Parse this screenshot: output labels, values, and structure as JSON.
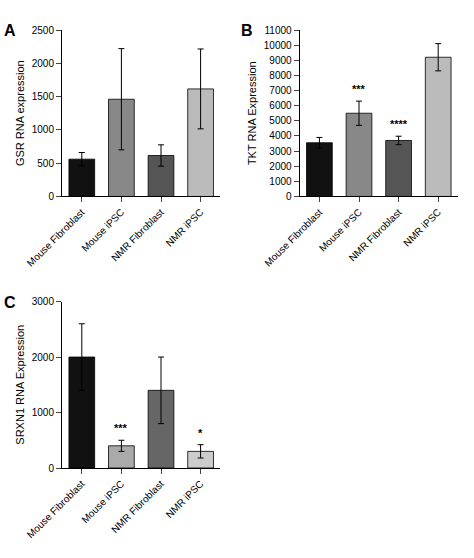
{
  "chart_data": [
    {
      "type": "bar",
      "title": "A",
      "ylabel": "GSR RNA expression",
      "categories": [
        "Mouse Fibroblast",
        "Mouse iPSC",
        "NMR Fibroblast",
        "NMR iPSC"
      ],
      "values": [
        560,
        1460,
        615,
        1615
      ],
      "errors": [
        100,
        760,
        160,
        600
      ],
      "colors": [
        "#111111",
        "#888888",
        "#555555",
        "#bbbbbb"
      ],
      "ylim": [
        0,
        2500
      ],
      "yticks": [
        0,
        500,
        1000,
        1500,
        2000,
        2500
      ],
      "annotations": [],
      "grid": false
    },
    {
      "type": "bar",
      "title": "B",
      "ylabel": "TKT RNA Expression",
      "categories": [
        "Mouse Fibroblast",
        "Mouse iPSC",
        "NMR Fibroblast",
        "NMR iPSC"
      ],
      "values": [
        3550,
        5500,
        3700,
        9200
      ],
      "errors": [
        350,
        800,
        280,
        900
      ],
      "colors": [
        "#111111",
        "#888888",
        "#555555",
        "#bbbbbb"
      ],
      "ylim": [
        0,
        11000
      ],
      "yticks": [
        0,
        1000,
        2000,
        3000,
        4000,
        5000,
        6000,
        7000,
        8000,
        9000,
        10000,
        11000
      ],
      "annotations": [
        {
          "x": "Mouse iPSC",
          "text": "***"
        },
        {
          "x": "NMR Fibroblast",
          "text": "****"
        }
      ],
      "grid": false
    },
    {
      "type": "bar",
      "title": "C",
      "ylabel": "SRXN1 RNA Expression",
      "categories": [
        "Mouse Fibroblast",
        "Mouse iPSC",
        "NMR Fibroblast",
        "NMR iPSC"
      ],
      "values": [
        2000,
        400,
        1400,
        300
      ],
      "errors": [
        600,
        100,
        600,
        120
      ],
      "colors": [
        "#111111",
        "#aaaaaa",
        "#666666",
        "#cccccc"
      ],
      "ylim": [
        0,
        3000
      ],
      "yticks": [
        0,
        1000,
        2000,
        3000
      ],
      "annotations": [
        {
          "x": "Mouse iPSC",
          "text": "***"
        },
        {
          "x": "NMR iPSC",
          "text": "*"
        }
      ],
      "grid": false
    }
  ]
}
